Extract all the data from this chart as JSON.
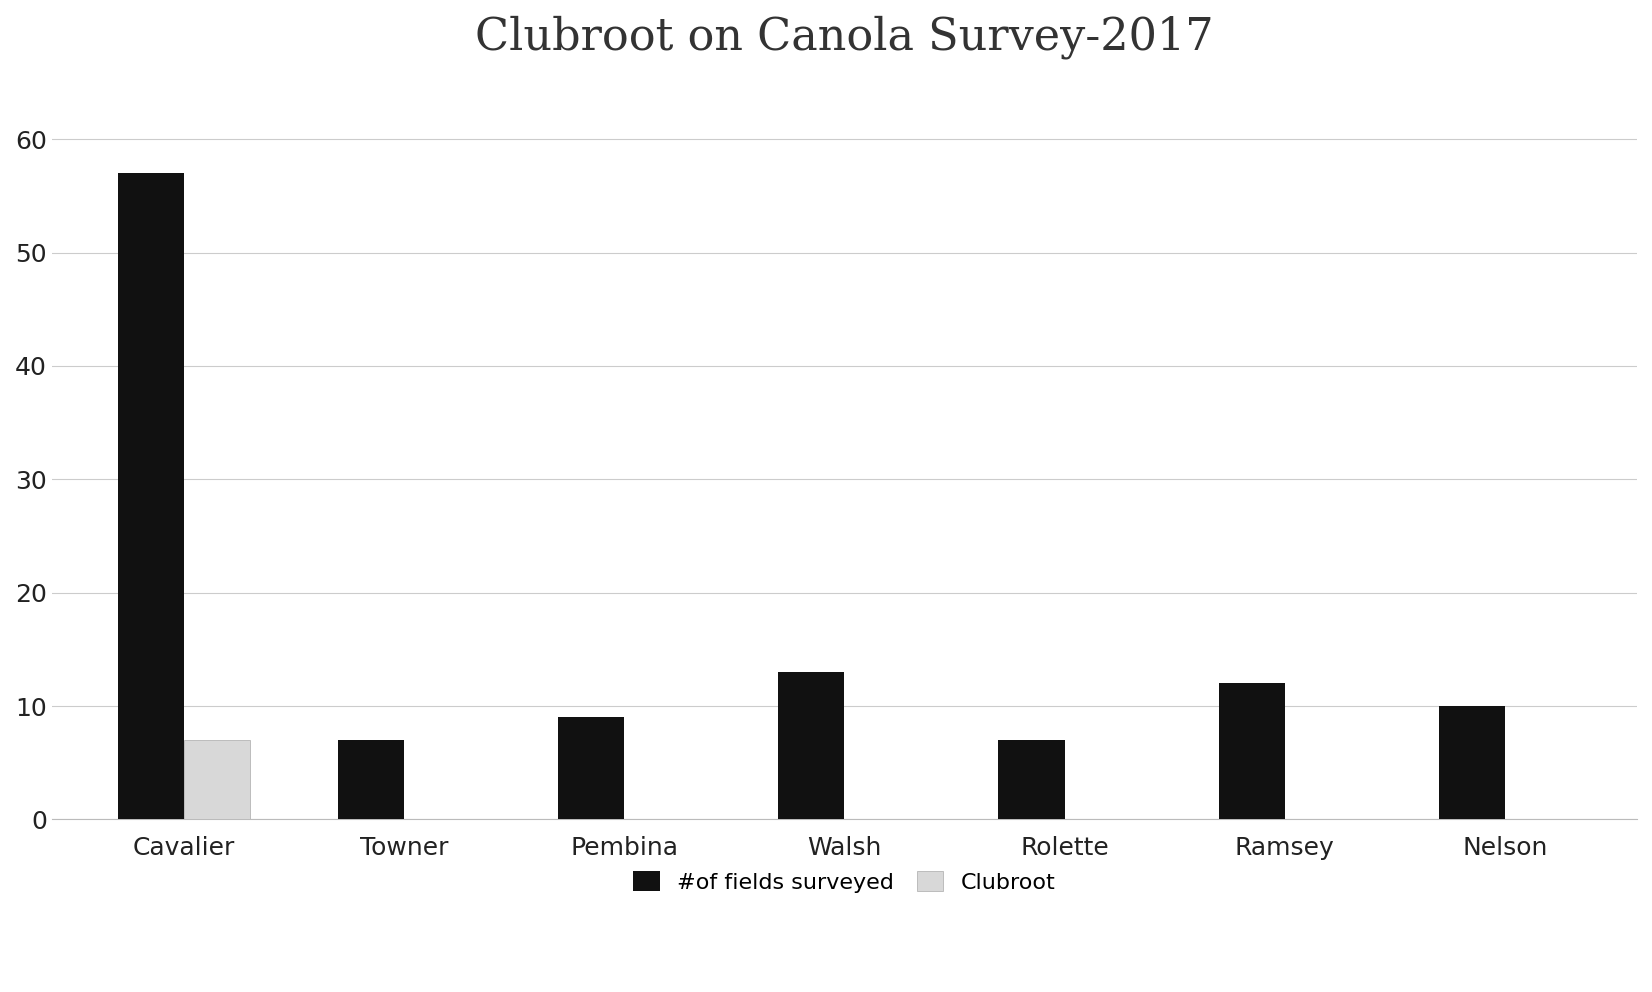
{
  "title": "Clubroot on Canola Survey-2017",
  "categories": [
    "Cavalier",
    "Towner",
    "Pembina",
    "Walsh",
    "Rolette",
    "Ramsey",
    "Nelson"
  ],
  "fields_surveyed": [
    57,
    7,
    9,
    13,
    7,
    12,
    10
  ],
  "clubroot": [
    7,
    0,
    0,
    0,
    0,
    0,
    0
  ],
  "fields_color": "#111111",
  "clubroot_color": "#d8d8d8",
  "legend_labels": [
    "#of fields surveyed",
    "Clubroot"
  ],
  "ylim": [
    0,
    65
  ],
  "yticks": [
    0,
    10,
    20,
    30,
    40,
    50,
    60
  ],
  "title_fontsize": 32,
  "tick_fontsize": 18,
  "legend_fontsize": 16,
  "bar_width": 0.3,
  "background_color": "#ffffff",
  "grid_color": "#cccccc"
}
